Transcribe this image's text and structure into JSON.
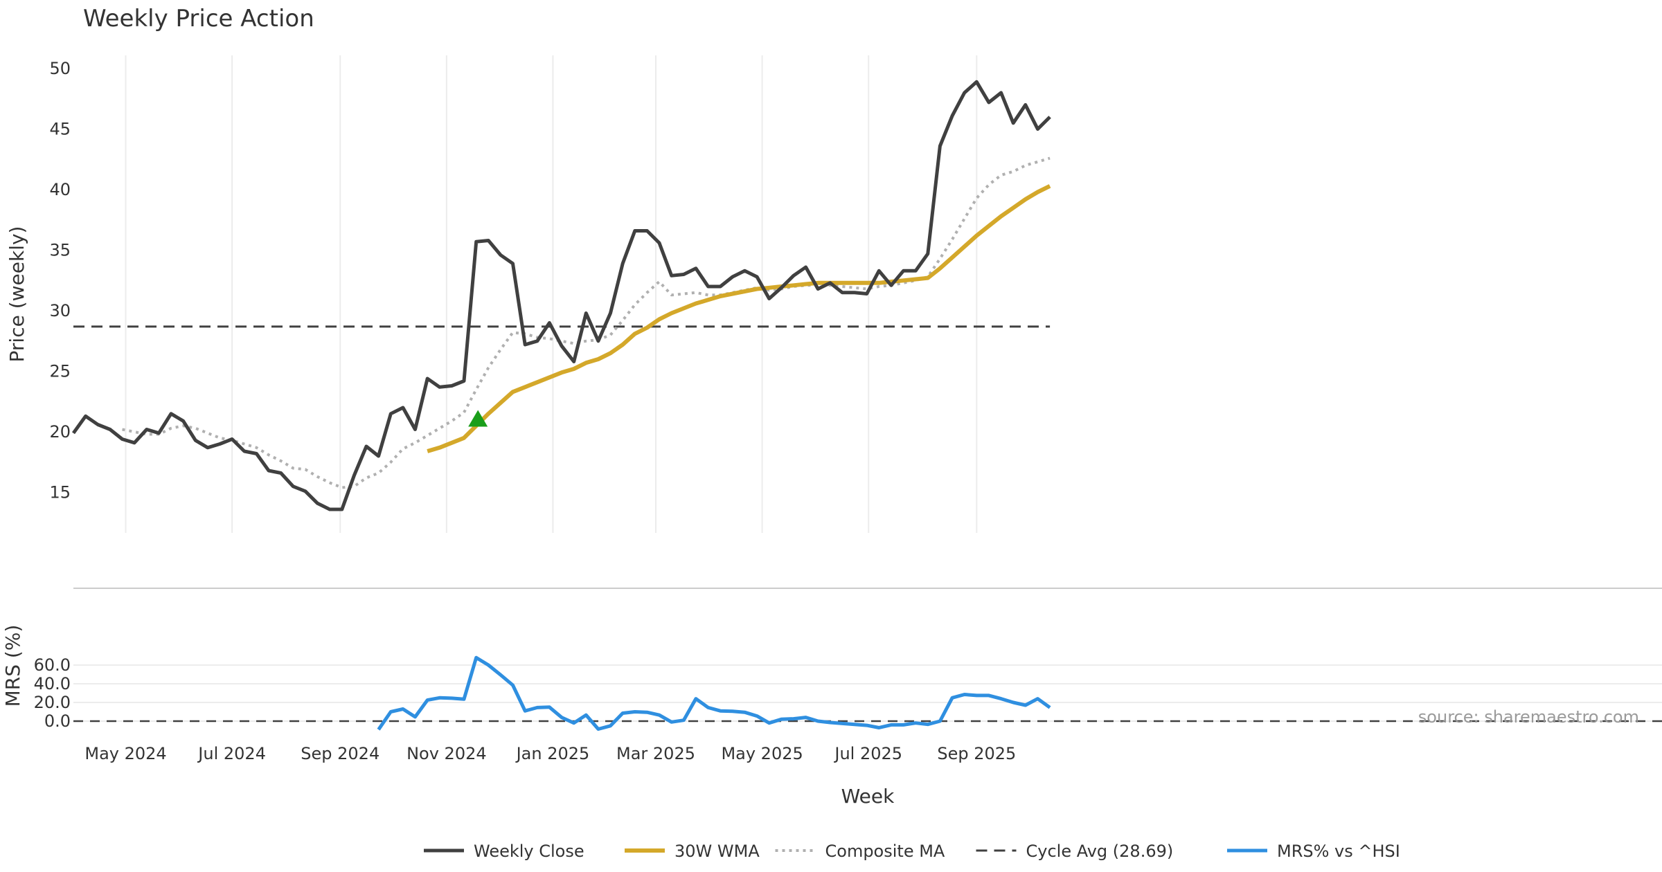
{
  "chart_data": {
    "type": "line",
    "title": "Weekly Price Action",
    "xlabel": "Week",
    "source_label": "source: sharemaestro.com",
    "x_start_date": "2024-04-01",
    "x_range": [
      "2024-04-01",
      "2025-10-31"
    ],
    "x_ticks": [
      {
        "date": "2024-05-01",
        "label": "May 2024"
      },
      {
        "date": "2024-07-01",
        "label": "Jul 2024"
      },
      {
        "date": "2024-09-01",
        "label": "Sep 2024"
      },
      {
        "date": "2024-11-01",
        "label": "Nov 2024"
      },
      {
        "date": "2025-01-01",
        "label": "Jan 2025"
      },
      {
        "date": "2025-03-01",
        "label": "Mar 2025"
      },
      {
        "date": "2025-05-01",
        "label": "May 2025"
      },
      {
        "date": "2025-07-01",
        "label": "Jul 2025"
      },
      {
        "date": "2025-09-01",
        "label": "Sep 2025"
      }
    ],
    "price_panel": {
      "ylabel": "Price (weekly)",
      "ylim": [
        11,
        51
      ],
      "yticks": [
        15,
        20,
        25,
        30,
        35,
        40,
        45,
        50
      ],
      "grid": true
    },
    "mrs_panel": {
      "ylabel": "MRS (%)",
      "ylim": [
        -12,
        75
      ],
      "yticks": [
        "0.0",
        "20.0",
        "40.0",
        "60.0"
      ],
      "grid": true
    },
    "cycle_avg": 28.69,
    "signal_marker": {
      "date": "2024-11-19",
      "value": 21.0,
      "shape": "triangle-up",
      "color": "#1a9e1a"
    },
    "series": [
      {
        "name": "Weekly Close",
        "color": "#404040",
        "values": [
          [
            0,
            19.9
          ],
          [
            7,
            21.3
          ],
          [
            14,
            20.6
          ],
          [
            21,
            20.2
          ],
          [
            28,
            19.4
          ],
          [
            35,
            19.1
          ],
          [
            42,
            20.2
          ],
          [
            49,
            19.9
          ],
          [
            56,
            21.5
          ],
          [
            63,
            20.9
          ],
          [
            70,
            19.3
          ],
          [
            77,
            18.7
          ],
          [
            84,
            19.0
          ],
          [
            91,
            19.4
          ],
          [
            98,
            18.4
          ],
          [
            105,
            18.2
          ],
          [
            112,
            16.8
          ],
          [
            119,
            16.6
          ],
          [
            126,
            15.5
          ],
          [
            133,
            15.1
          ],
          [
            140,
            14.1
          ],
          [
            147,
            13.6
          ],
          [
            154,
            13.6
          ],
          [
            161,
            16.4
          ],
          [
            168,
            18.8
          ],
          [
            175,
            18.0
          ],
          [
            182,
            21.5
          ],
          [
            189,
            22.0
          ],
          [
            196,
            20.2
          ],
          [
            203,
            24.4
          ],
          [
            210,
            23.7
          ],
          [
            217,
            23.8
          ],
          [
            224,
            24.2
          ],
          [
            231,
            35.7
          ],
          [
            238,
            35.8
          ],
          [
            245,
            34.6
          ],
          [
            252,
            33.9
          ],
          [
            259,
            27.2
          ],
          [
            266,
            27.5
          ],
          [
            273,
            29.0
          ],
          [
            280,
            27.1
          ],
          [
            287,
            25.8
          ],
          [
            294,
            29.8
          ],
          [
            301,
            27.5
          ],
          [
            308,
            29.8
          ],
          [
            315,
            33.9
          ],
          [
            322,
            36.6
          ],
          [
            329,
            36.6
          ],
          [
            336,
            35.6
          ],
          [
            343,
            32.9
          ],
          [
            350,
            33.0
          ],
          [
            357,
            33.5
          ],
          [
            364,
            32.0
          ],
          [
            371,
            32.0
          ],
          [
            378,
            32.8
          ],
          [
            385,
            33.3
          ],
          [
            392,
            32.8
          ],
          [
            399,
            31.0
          ],
          [
            406,
            31.9
          ],
          [
            413,
            32.9
          ],
          [
            420,
            33.6
          ],
          [
            427,
            31.8
          ],
          [
            434,
            32.3
          ],
          [
            441,
            31.5
          ],
          [
            448,
            31.5
          ],
          [
            455,
            31.4
          ],
          [
            462,
            33.3
          ],
          [
            469,
            32.1
          ],
          [
            476,
            33.3
          ],
          [
            483,
            33.3
          ],
          [
            490,
            34.7
          ],
          [
            497,
            43.6
          ],
          [
            504,
            46.1
          ],
          [
            511,
            48.0
          ],
          [
            518,
            48.9
          ],
          [
            525,
            47.2
          ],
          [
            532,
            48.0
          ],
          [
            539,
            45.5
          ],
          [
            546,
            47.0
          ],
          [
            553,
            45.0
          ],
          [
            560,
            46.0
          ]
        ]
      },
      {
        "name": "30W WMA",
        "color": "#d4a82a",
        "values": [
          [
            203,
            18.4
          ],
          [
            210,
            18.7
          ],
          [
            217,
            19.1
          ],
          [
            224,
            19.5
          ],
          [
            231,
            20.5
          ],
          [
            238,
            21.5
          ],
          [
            245,
            22.4
          ],
          [
            252,
            23.3
          ],
          [
            259,
            23.7
          ],
          [
            266,
            24.1
          ],
          [
            273,
            24.5
          ],
          [
            280,
            24.9
          ],
          [
            287,
            25.2
          ],
          [
            294,
            25.7
          ],
          [
            301,
            26.0
          ],
          [
            308,
            26.5
          ],
          [
            315,
            27.2
          ],
          [
            322,
            28.1
          ],
          [
            329,
            28.6
          ],
          [
            336,
            29.3
          ],
          [
            343,
            29.8
          ],
          [
            350,
            30.2
          ],
          [
            357,
            30.6
          ],
          [
            364,
            30.9
          ],
          [
            371,
            31.2
          ],
          [
            378,
            31.4
          ],
          [
            385,
            31.6
          ],
          [
            392,
            31.8
          ],
          [
            399,
            31.9
          ],
          [
            406,
            32.0
          ],
          [
            413,
            32.1
          ],
          [
            420,
            32.2
          ],
          [
            427,
            32.3
          ],
          [
            434,
            32.3
          ],
          [
            441,
            32.3
          ],
          [
            448,
            32.3
          ],
          [
            455,
            32.3
          ],
          [
            462,
            32.3
          ],
          [
            469,
            32.4
          ],
          [
            476,
            32.5
          ],
          [
            483,
            32.6
          ],
          [
            490,
            32.7
          ],
          [
            497,
            33.5
          ],
          [
            504,
            34.4
          ],
          [
            511,
            35.3
          ],
          [
            518,
            36.2
          ],
          [
            525,
            37.0
          ],
          [
            532,
            37.8
          ],
          [
            539,
            38.5
          ],
          [
            546,
            39.2
          ],
          [
            553,
            39.8
          ],
          [
            560,
            40.3
          ]
        ]
      },
      {
        "name": "Composite MA",
        "color": "#b0b0b0",
        "values": [
          [
            28,
            20.2
          ],
          [
            35,
            20.0
          ],
          [
            42,
            19.8
          ],
          [
            49,
            19.8
          ],
          [
            56,
            20.3
          ],
          [
            63,
            20.5
          ],
          [
            70,
            20.3
          ],
          [
            77,
            19.9
          ],
          [
            84,
            19.5
          ],
          [
            91,
            19.3
          ],
          [
            98,
            19.0
          ],
          [
            105,
            18.7
          ],
          [
            112,
            18.1
          ],
          [
            119,
            17.6
          ],
          [
            126,
            17.0
          ],
          [
            133,
            16.9
          ],
          [
            140,
            16.3
          ],
          [
            147,
            15.8
          ],
          [
            154,
            15.4
          ],
          [
            161,
            15.5
          ],
          [
            168,
            16.2
          ],
          [
            175,
            16.6
          ],
          [
            182,
            17.5
          ],
          [
            189,
            18.6
          ],
          [
            196,
            19.1
          ],
          [
            203,
            19.7
          ],
          [
            210,
            20.3
          ],
          [
            217,
            20.9
          ],
          [
            224,
            21.6
          ],
          [
            231,
            23.5
          ],
          [
            238,
            25.3
          ],
          [
            245,
            26.8
          ],
          [
            252,
            28.2
          ],
          [
            259,
            28.1
          ],
          [
            266,
            27.8
          ],
          [
            273,
            27.7
          ],
          [
            280,
            27.5
          ],
          [
            287,
            27.3
          ],
          [
            294,
            27.5
          ],
          [
            301,
            27.6
          ],
          [
            308,
            28.0
          ],
          [
            315,
            29.2
          ],
          [
            322,
            30.5
          ],
          [
            329,
            31.5
          ],
          [
            336,
            32.4
          ],
          [
            343,
            31.3
          ],
          [
            350,
            31.4
          ],
          [
            357,
            31.5
          ],
          [
            364,
            31.3
          ],
          [
            371,
            31.3
          ],
          [
            378,
            31.5
          ],
          [
            385,
            31.7
          ],
          [
            392,
            31.9
          ],
          [
            399,
            31.7
          ],
          [
            406,
            31.8
          ],
          [
            413,
            32.0
          ],
          [
            420,
            32.1
          ],
          [
            427,
            32.1
          ],
          [
            434,
            32.1
          ],
          [
            441,
            32.0
          ],
          [
            448,
            31.9
          ],
          [
            455,
            31.8
          ],
          [
            462,
            32.0
          ],
          [
            469,
            32.1
          ],
          [
            476,
            32.3
          ],
          [
            483,
            32.5
          ],
          [
            490,
            32.8
          ],
          [
            497,
            34.3
          ],
          [
            504,
            35.9
          ],
          [
            511,
            37.6
          ],
          [
            518,
            39.3
          ],
          [
            525,
            40.4
          ],
          [
            532,
            41.2
          ],
          [
            539,
            41.5
          ],
          [
            546,
            42.0
          ],
          [
            553,
            42.3
          ],
          [
            560,
            42.6
          ]
        ]
      },
      {
        "name": "Cycle Avg (28.69)",
        "color": "#404040",
        "values": [
          [
            0,
            28.69
          ],
          [
            560,
            28.69
          ]
        ]
      },
      {
        "name": "MRS% vs ^HSI",
        "color": "#2f8fe0",
        "values": [
          [
            175,
            -9.0
          ],
          [
            182,
            10.0
          ],
          [
            189,
            13.0
          ],
          [
            196,
            4.5
          ],
          [
            203,
            22.5
          ],
          [
            210,
            25.0
          ],
          [
            217,
            24.5
          ],
          [
            224,
            23.5
          ],
          [
            231,
            68.0
          ],
          [
            238,
            60.0
          ],
          [
            245,
            49.5
          ],
          [
            252,
            38.5
          ],
          [
            259,
            11.0
          ],
          [
            266,
            14.5
          ],
          [
            273,
            15.0
          ],
          [
            280,
            4.0
          ],
          [
            287,
            -2.0
          ],
          [
            294,
            6.5
          ],
          [
            301,
            -8.5
          ],
          [
            308,
            -5.0
          ],
          [
            315,
            8.5
          ],
          [
            322,
            10.0
          ],
          [
            329,
            9.5
          ],
          [
            336,
            6.5
          ],
          [
            343,
            -1.0
          ],
          [
            350,
            1.0
          ],
          [
            357,
            24.0
          ],
          [
            364,
            14.5
          ],
          [
            371,
            11.0
          ],
          [
            378,
            10.5
          ],
          [
            385,
            9.5
          ],
          [
            392,
            5.5
          ],
          [
            399,
            -2.0
          ],
          [
            406,
            2.0
          ],
          [
            413,
            2.5
          ],
          [
            420,
            4.0
          ],
          [
            427,
            0.0
          ],
          [
            434,
            -1.5
          ],
          [
            441,
            -2.5
          ],
          [
            448,
            -3.5
          ],
          [
            455,
            -4.5
          ],
          [
            462,
            -7.0
          ],
          [
            469,
            -4.0
          ],
          [
            476,
            -4.0
          ],
          [
            483,
            -2.0
          ],
          [
            490,
            -3.5
          ],
          [
            497,
            0.0
          ],
          [
            504,
            25.0
          ],
          [
            511,
            28.5
          ],
          [
            518,
            27.5
          ],
          [
            525,
            27.5
          ],
          [
            532,
            24.0
          ],
          [
            539,
            20.0
          ],
          [
            546,
            17.0
          ],
          [
            553,
            24.0
          ],
          [
            560,
            14.5
          ]
        ]
      }
    ],
    "legend": {
      "placement": "bottom-center",
      "items": [
        "Weekly Close",
        "30W WMA",
        "Composite MA",
        "Cycle Avg (28.69)",
        "MRS% vs ^HSI"
      ]
    }
  }
}
